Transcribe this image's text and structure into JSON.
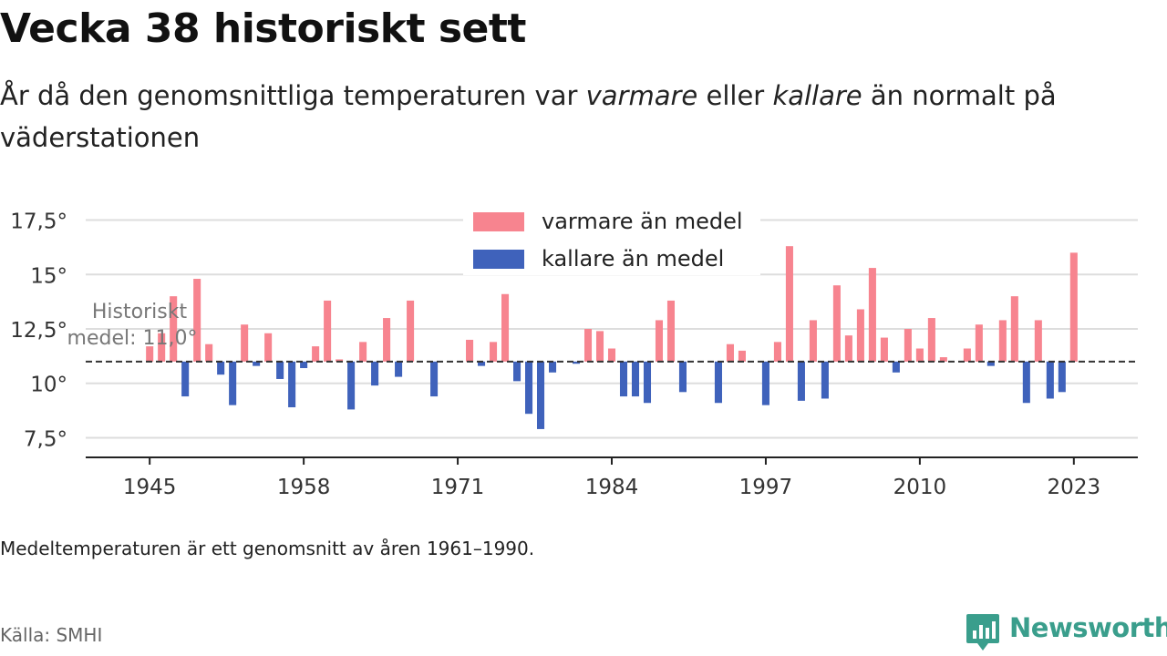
{
  "title": "Vecka 38 historiskt sett",
  "subtitle": {
    "part1": "År då den genomsnittliga temperaturen var ",
    "warm": "varmare",
    "part2": " eller ",
    "cold": "kallare",
    "part3": " än normalt på väderstationen"
  },
  "note": "Medeltemperaturen är ett genomsnitt av åren 1961–1990.",
  "source": "Källa: SMHI",
  "logo": {
    "text": "Newsworthy",
    "icon": "newsworthy-chart-bubble-icon",
    "color": "#3a9e8c"
  },
  "chart_data": {
    "type": "bar",
    "baseline": 11.0,
    "baseline_label": [
      "Historiskt",
      "medel: 11,0°"
    ],
    "ylim": [
      6.6,
      18.4
    ],
    "xlim": [
      1939.6,
      2028.4
    ],
    "y_ticks": [
      7.5,
      10,
      12.5,
      15,
      17.5
    ],
    "y_tick_labels": [
      "7,5°",
      "10°",
      "12,5°",
      "15°",
      "17,5°"
    ],
    "x_ticks": [
      1945,
      1958,
      1971,
      1984,
      1997,
      2010,
      2023
    ],
    "x_tick_labels": [
      "1945",
      "1958",
      "1971",
      "1984",
      "1997",
      "2010",
      "2023"
    ],
    "grid": true,
    "legend_position": "top-center",
    "colors": {
      "warm": "#f7848f",
      "cold": "#3f62bb",
      "baseline": "#333333",
      "grid": "#dddddd"
    },
    "series": [
      {
        "name": "varmare än medel",
        "color": "#f7848f"
      },
      {
        "name": "kallare än medel",
        "color": "#3f62bb"
      }
    ],
    "x": [
      1945,
      1946,
      1947,
      1948,
      1949,
      1950,
      1951,
      1952,
      1953,
      1954,
      1955,
      1956,
      1957,
      1958,
      1959,
      1960,
      1961,
      1962,
      1963,
      1964,
      1965,
      1966,
      1967,
      1968,
      1969,
      1970,
      1971,
      1972,
      1973,
      1974,
      1975,
      1976,
      1977,
      1978,
      1979,
      1980,
      1981,
      1982,
      1983,
      1984,
      1985,
      1986,
      1987,
      1988,
      1989,
      1990,
      1991,
      1992,
      1993,
      1994,
      1995,
      1996,
      1997,
      1998,
      1999,
      2000,
      2001,
      2002,
      2003,
      2004,
      2005,
      2006,
      2007,
      2008,
      2009,
      2010,
      2011,
      2012,
      2013,
      2014,
      2015,
      2016,
      2017,
      2018,
      2019,
      2020,
      2021,
      2022,
      2023
    ],
    "values": [
      11.7,
      12.3,
      14.0,
      9.4,
      14.8,
      11.8,
      10.4,
      9.0,
      12.7,
      10.8,
      12.3,
      10.2,
      8.9,
      10.7,
      11.7,
      13.8,
      11.1,
      8.8,
      11.9,
      9.9,
      13.0,
      10.3,
      13.8,
      11.0,
      9.4,
      11.0,
      11.0,
      12.0,
      10.8,
      11.9,
      14.1,
      10.1,
      8.6,
      7.9,
      10.5,
      11.0,
      10.9,
      12.5,
      12.4,
      11.6,
      9.4,
      9.4,
      9.1,
      12.9,
      13.8,
      9.6,
      11.0,
      11.0,
      9.1,
      11.8,
      11.5,
      11.0,
      9.0,
      11.9,
      16.3,
      9.2,
      12.9,
      9.3,
      14.5,
      12.2,
      13.4,
      15.3,
      12.1,
      10.5,
      12.5,
      11.6,
      13.0,
      11.2,
      11.0,
      11.6,
      12.7,
      10.8,
      12.9,
      14.0,
      9.1,
      12.9,
      9.3,
      9.6,
      16.0
    ]
  }
}
